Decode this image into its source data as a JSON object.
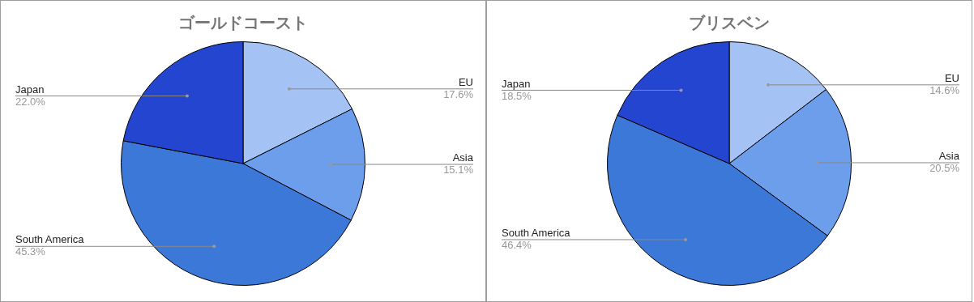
{
  "chart_data": [
    {
      "type": "pie",
      "title": "ゴールドコースト",
      "categories": [
        "EU",
        "Asia",
        "South America",
        "Japan"
      ],
      "values": [
        17.6,
        15.1,
        45.3,
        22.0
      ],
      "value_labels": [
        "17.6%",
        "15.1%",
        "45.3%",
        "22.0%"
      ],
      "colors": [
        "#a4c2f4",
        "#6d9eeb",
        "#3c78d8",
        "#2445cf"
      ],
      "legend": false
    },
    {
      "type": "pie",
      "title": "ブリスベン",
      "categories": [
        "EU",
        "Asia",
        "South America",
        "Japan"
      ],
      "values": [
        14.6,
        20.5,
        46.4,
        18.5
      ],
      "value_labels": [
        "14.6%",
        "20.5%",
        "46.4%",
        "18.5%"
      ],
      "colors": [
        "#a4c2f4",
        "#6d9eeb",
        "#3c78d8",
        "#2445cf"
      ],
      "legend": false
    }
  ]
}
